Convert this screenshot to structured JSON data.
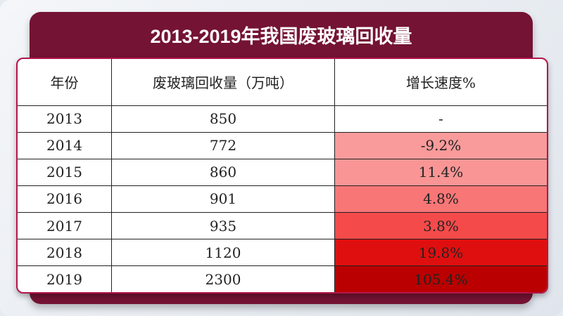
{
  "title": "2013-2019年我国废玻璃回收量",
  "table": {
    "headers": [
      "年份",
      "废玻璃回收量（万吨）",
      "增长速度%"
    ],
    "rows": [
      {
        "year": "2013",
        "amount": "850",
        "growth": "-",
        "color": "#ffffff"
      },
      {
        "year": "2014",
        "amount": "772",
        "growth": "-9.2%",
        "color": "#f99b9b"
      },
      {
        "year": "2015",
        "amount": "860",
        "growth": "11.4%",
        "color": "#f99595"
      },
      {
        "year": "2016",
        "amount": "901",
        "growth": "4.8%",
        "color": "#f87676"
      },
      {
        "year": "2017",
        "amount": "935",
        "growth": "3.8%",
        "color": "#f54a4a"
      },
      {
        "year": "2018",
        "amount": "1120",
        "growth": "19.8%",
        "color": "#e00f0f"
      },
      {
        "year": "2019",
        "amount": "2300",
        "growth": "105.4%",
        "color": "#ba0000"
      }
    ]
  }
}
